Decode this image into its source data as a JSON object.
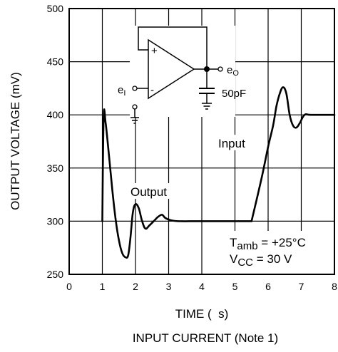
{
  "chart_data": {
    "type": "line",
    "title": "",
    "xlabel": "TIME (  s)",
    "ylabel": "OUTPUT VOLTAGE (mV)",
    "caption": "INPUT CURRENT (Note 1)",
    "xlim": [
      0,
      8
    ],
    "ylim": [
      250,
      500
    ],
    "xticks": [
      "0",
      "1",
      "2",
      "3",
      "4",
      "5",
      "6",
      "7",
      "8"
    ],
    "yticks": [
      "250",
      "300",
      "350",
      "400",
      "450",
      "500"
    ],
    "grid": true,
    "series": [
      {
        "name": "Output",
        "x": [
          1.0,
          1.04,
          1.1,
          1.2,
          1.3,
          1.4,
          1.5,
          1.6,
          1.7,
          1.78,
          1.85,
          1.92,
          2.0,
          2.1,
          2.2,
          2.3,
          2.42,
          2.55,
          2.68,
          2.8,
          2.9,
          3.05,
          3.3,
          4.0,
          5.5
        ],
        "y": [
          300,
          398,
          392,
          362,
          330,
          302,
          282,
          270,
          266,
          268,
          285,
          308,
          316,
          312,
          300,
          293,
          296,
          300,
          304,
          306,
          303,
          301,
          300,
          300,
          300
        ]
      },
      {
        "name": "Input",
        "x": [
          5.5,
          5.8,
          6.0,
          6.15,
          6.25,
          6.35,
          6.45,
          6.55,
          6.65,
          6.75,
          6.85,
          6.95,
          7.1,
          7.3,
          8.0
        ],
        "y": [
          300,
          340,
          370,
          390,
          408,
          420,
          426,
          420,
          400,
          390,
          388,
          392,
          400,
          400,
          400
        ]
      }
    ],
    "annotations": {
      "output_label": "Output",
      "input_label": "Input",
      "t_amb": {
        "main": "T",
        "sub": "amb",
        "rest": " = +25°C"
      },
      "vcc": {
        "main": "V",
        "sub": "CC",
        "rest": " = 30 V"
      }
    }
  },
  "circuit": {
    "plus": "+",
    "minus": "-",
    "input_label": {
      "main": "e",
      "sub": "I"
    },
    "output_label": {
      "main": "e",
      "sub": "O"
    },
    "cap_label": "50pF"
  }
}
